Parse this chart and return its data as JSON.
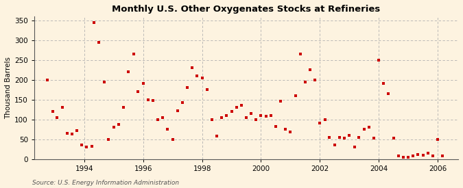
{
  "title": "Monthly U.S. Other Oxygenates Stocks at Refineries",
  "ylabel": "Thousand Barrels",
  "source": "Source: U.S. Energy Information Administration",
  "background_color": "#fdf3e0",
  "plot_bg_color": "#fdf3e0",
  "marker_color": "#cc0000",
  "marker_size": 9,
  "xlim": [
    1992.3,
    2006.7
  ],
  "ylim": [
    0,
    360
  ],
  "yticks": [
    0,
    50,
    100,
    150,
    200,
    250,
    300,
    350
  ],
  "xticks": [
    1994,
    1996,
    1998,
    2000,
    2002,
    2004,
    2006
  ],
  "data": [
    [
      1992.75,
      200
    ],
    [
      1992.92,
      120
    ],
    [
      1993.08,
      105
    ],
    [
      1993.25,
      130
    ],
    [
      1993.42,
      65
    ],
    [
      1993.58,
      63
    ],
    [
      1993.75,
      72
    ],
    [
      1993.92,
      35
    ],
    [
      1994.08,
      30
    ],
    [
      1994.25,
      32
    ],
    [
      1994.33,
      345
    ],
    [
      1994.5,
      295
    ],
    [
      1994.67,
      195
    ],
    [
      1994.83,
      50
    ],
    [
      1995.0,
      80
    ],
    [
      1995.17,
      88
    ],
    [
      1995.33,
      130
    ],
    [
      1995.5,
      220
    ],
    [
      1995.67,
      265
    ],
    [
      1995.83,
      170
    ],
    [
      1996.0,
      190
    ],
    [
      1996.17,
      150
    ],
    [
      1996.33,
      148
    ],
    [
      1996.5,
      100
    ],
    [
      1996.67,
      105
    ],
    [
      1996.83,
      75
    ],
    [
      1997.0,
      50
    ],
    [
      1997.17,
      122
    ],
    [
      1997.33,
      143
    ],
    [
      1997.5,
      180
    ],
    [
      1997.67,
      230
    ],
    [
      1997.83,
      210
    ],
    [
      1998.0,
      205
    ],
    [
      1998.17,
      175
    ],
    [
      1998.33,
      100
    ],
    [
      1998.5,
      58
    ],
    [
      1998.67,
      105
    ],
    [
      1998.83,
      110
    ],
    [
      1999.0,
      120
    ],
    [
      1999.17,
      130
    ],
    [
      1999.33,
      135
    ],
    [
      1999.5,
      105
    ],
    [
      1999.67,
      115
    ],
    [
      1999.83,
      100
    ],
    [
      2000.0,
      110
    ],
    [
      2000.17,
      108
    ],
    [
      2000.33,
      110
    ],
    [
      2000.5,
      82
    ],
    [
      2000.67,
      145
    ],
    [
      2000.83,
      75
    ],
    [
      2001.0,
      68
    ],
    [
      2001.17,
      160
    ],
    [
      2001.33,
      265
    ],
    [
      2001.5,
      195
    ],
    [
      2001.67,
      225
    ],
    [
      2001.83,
      200
    ],
    [
      2002.0,
      90
    ],
    [
      2002.17,
      100
    ],
    [
      2002.33,
      55
    ],
    [
      2002.5,
      35
    ],
    [
      2002.67,
      55
    ],
    [
      2002.83,
      52
    ],
    [
      2003.0,
      60
    ],
    [
      2003.17,
      30
    ],
    [
      2003.33,
      55
    ],
    [
      2003.5,
      75
    ],
    [
      2003.67,
      80
    ],
    [
      2003.83,
      52
    ],
    [
      2004.0,
      250
    ],
    [
      2004.17,
      190
    ],
    [
      2004.33,
      165
    ],
    [
      2004.5,
      52
    ],
    [
      2004.67,
      8
    ],
    [
      2004.83,
      5
    ],
    [
      2005.0,
      5
    ],
    [
      2005.17,
      8
    ],
    [
      2005.33,
      12
    ],
    [
      2005.5,
      10
    ],
    [
      2005.67,
      15
    ],
    [
      2005.83,
      8
    ],
    [
      2006.0,
      50
    ],
    [
      2006.17,
      7
    ]
  ]
}
